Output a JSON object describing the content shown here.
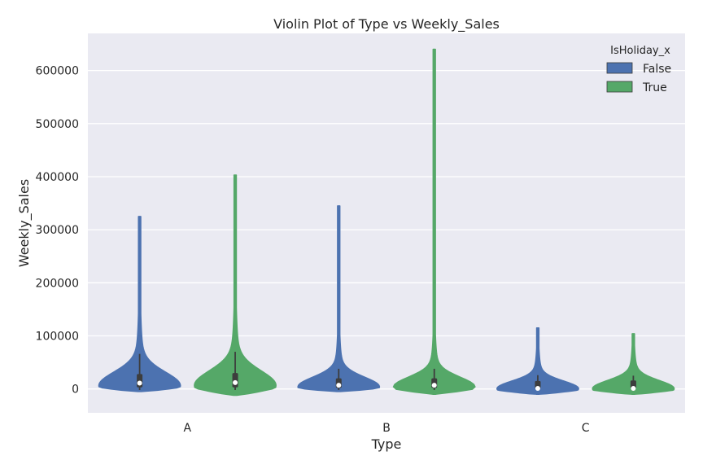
{
  "chart_data": {
    "type": "violin",
    "title": "Violin Plot of Type vs Weekly_Sales",
    "xlabel": "Type",
    "ylabel": "Weekly_Sales",
    "categories": [
      "A",
      "B",
      "C"
    ],
    "ylim": [
      -45000,
      670000
    ],
    "yticks": [
      0,
      100000,
      200000,
      300000,
      400000,
      500000,
      600000
    ],
    "ytick_labels": [
      "0",
      "100000",
      "200000",
      "300000",
      "400000",
      "500000",
      "600000"
    ],
    "grid": true,
    "legend": {
      "title": "IsHoliday_x",
      "placement": "top-right"
    },
    "series": [
      {
        "name": "False",
        "color": "#4c72b0",
        "violins": [
          {
            "category": "A",
            "min": -5000,
            "max": 325000,
            "q1": 3000,
            "median": 11000,
            "q3": 28000,
            "whisker_low": -2000,
            "whisker_high": 66000
          },
          {
            "category": "B",
            "min": -5000,
            "max": 345000,
            "q1": 2000,
            "median": 7000,
            "q3": 20000,
            "whisker_low": -2000,
            "whisker_high": 38000
          },
          {
            "category": "C",
            "min": -10000,
            "max": 115000,
            "q1": 1000,
            "median": 1000,
            "q3": 15000,
            "whisker_low": -3000,
            "whisker_high": 26000
          }
        ]
      },
      {
        "name": "True",
        "color": "#55a868",
        "violins": [
          {
            "category": "A",
            "min": -12000,
            "max": 403000,
            "q1": 3000,
            "median": 12000,
            "q3": 30000,
            "whisker_low": -2000,
            "whisker_high": 70000
          },
          {
            "category": "B",
            "min": -10000,
            "max": 640000,
            "q1": 2000,
            "median": 7000,
            "q3": 20000,
            "whisker_low": -2000,
            "whisker_high": 38000
          },
          {
            "category": "C",
            "min": -10000,
            "max": 104000,
            "q1": 1000,
            "median": 1000,
            "q3": 16000,
            "whisker_low": -3000,
            "whisker_high": 25000
          }
        ]
      }
    ]
  }
}
